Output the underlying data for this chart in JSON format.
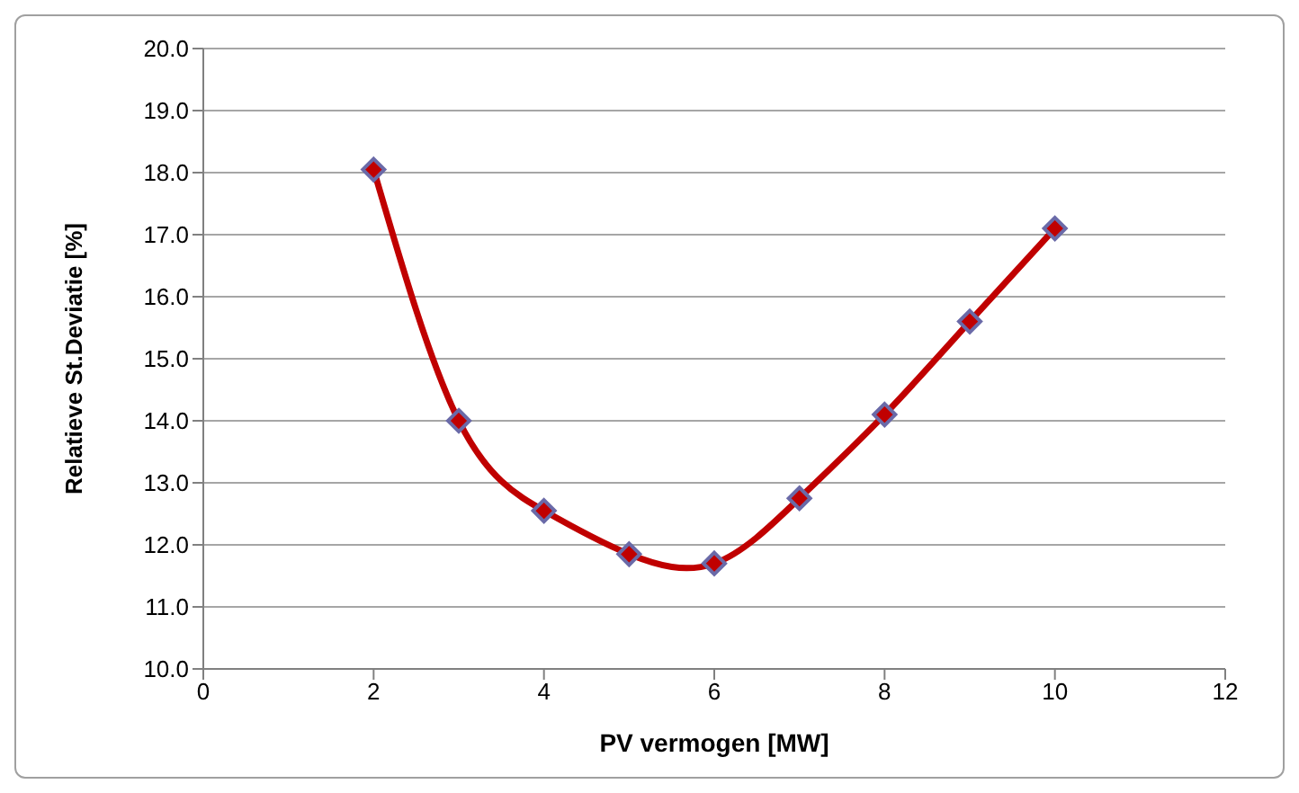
{
  "chart_data": {
    "type": "line",
    "xlabel": "PV vermogen [MW]",
    "ylabel": "Relatieve St.Deviatie [%]",
    "x": [
      2,
      3,
      4,
      5,
      6,
      7,
      8,
      9,
      10
    ],
    "series": [
      {
        "color": "#c00000",
        "values": [
          18.05,
          14.0,
          12.55,
          11.85,
          11.7,
          12.75,
          14.1,
          15.6,
          17.1
        ]
      }
    ],
    "xlim": [
      0,
      12
    ],
    "xticks": [
      0,
      2,
      4,
      6,
      8,
      10,
      12
    ],
    "ylim": [
      10,
      20
    ],
    "yticks": [
      {
        "value": 10,
        "label": "10.0"
      },
      {
        "value": 11,
        "label": "11.0"
      },
      {
        "value": 12,
        "label": "12.0"
      },
      {
        "value": 13,
        "label": "13.0"
      },
      {
        "value": 14,
        "label": "14.0"
      },
      {
        "value": 15,
        "label": "15.0"
      },
      {
        "value": 16,
        "label": "16.0"
      },
      {
        "value": 17,
        "label": "17.0"
      },
      {
        "value": 18,
        "label": "18.0"
      },
      {
        "value": 19,
        "label": "19.0"
      },
      {
        "value": 20,
        "label": "20.0"
      }
    ],
    "grid": "y",
    "marker": "diamond",
    "line_style": "solid"
  }
}
